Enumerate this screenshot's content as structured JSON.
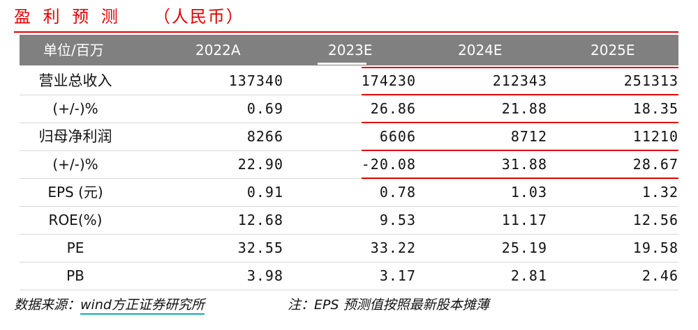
{
  "title": {
    "main": "盈 利 预 测",
    "sub": "（人民币）"
  },
  "header": [
    "单位/百万",
    "2022A",
    "2023E",
    "2024E",
    "2025E"
  ],
  "rows": [
    {
      "label": "营业总收入",
      "values": [
        "137340",
        "174230",
        "212343",
        "251313"
      ]
    },
    {
      "label": "(+/-)%",
      "values": [
        "0.69",
        "26.86",
        "21.88",
        "18.35"
      ]
    },
    {
      "label": "归母净利润",
      "values": [
        "8266",
        "6606",
        "8712",
        "11210"
      ]
    },
    {
      "label": "(+/-)%",
      "values": [
        "22.90",
        "-20.08",
        "31.88",
        "28.67"
      ]
    },
    {
      "label": "EPS (元)",
      "values": [
        "0.91",
        "0.78",
        "1.03",
        "1.32"
      ]
    },
    {
      "label": "ROE(%)",
      "values": [
        "12.68",
        "9.53",
        "11.17",
        "12.56"
      ]
    },
    {
      "label": "PE",
      "values": [
        "32.55",
        "33.22",
        "25.19",
        "19.58"
      ]
    },
    {
      "label": "PB",
      "values": [
        "3.98",
        "3.17",
        "2.81",
        "2.46"
      ]
    }
  ],
  "footer": {
    "source_prefix": "数据来源：",
    "source_wind": "wind",
    "source_firm": "方正证券研究所",
    "note": "注：EPS 预测值按照最新股本摊薄"
  },
  "colors": {
    "accent": "#e00000",
    "header_bg": "#808080",
    "underline": "#1aa7b8"
  }
}
